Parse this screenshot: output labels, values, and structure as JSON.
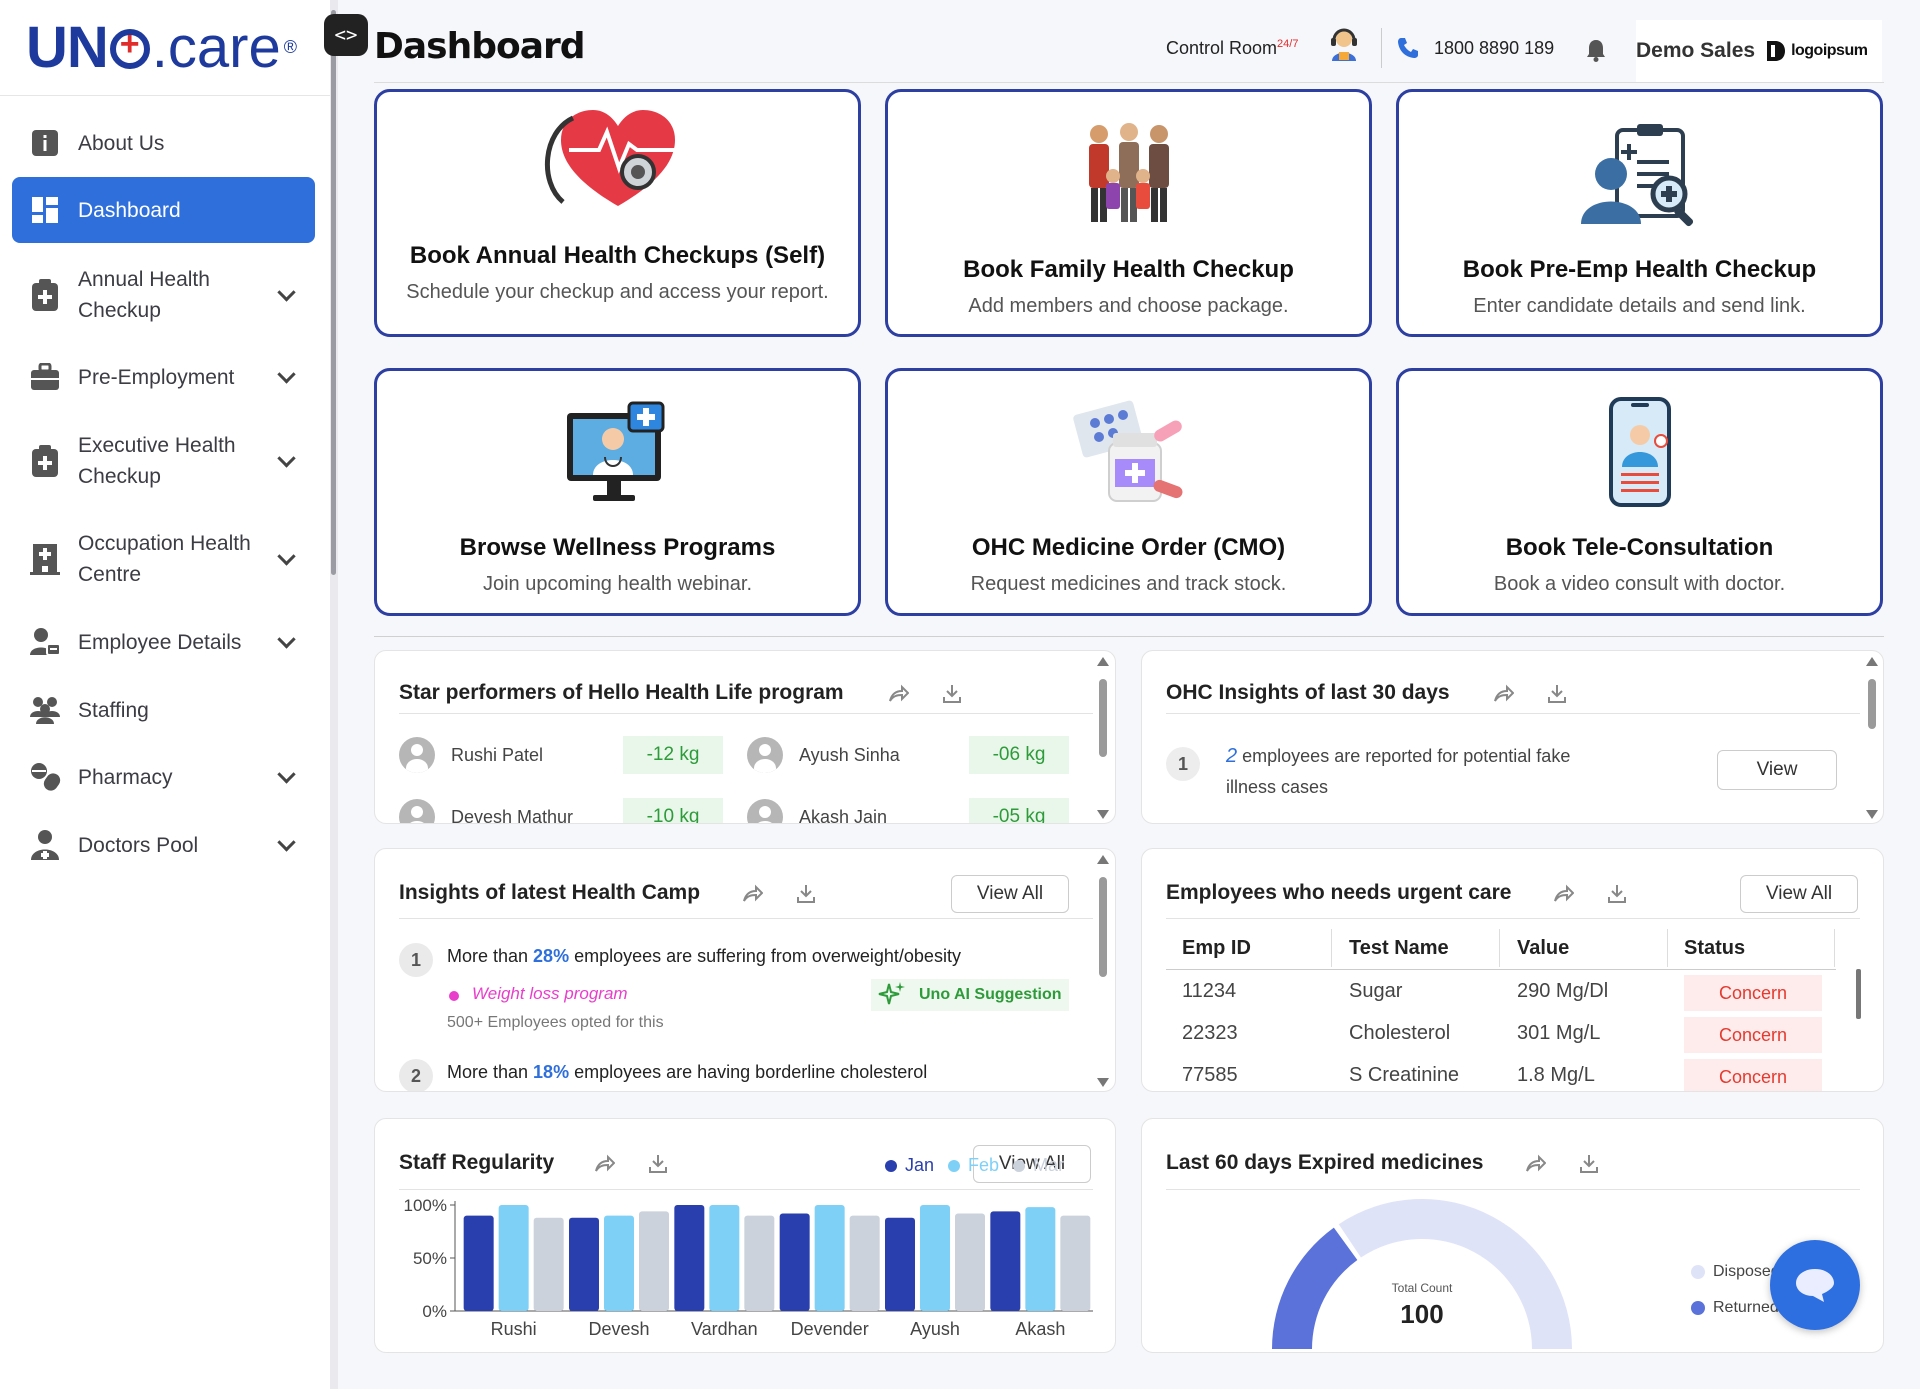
{
  "app": {
    "brand_uno": "UN",
    "brand_care": ".care",
    "brand_reg": "®",
    "page_title": "Dashboard"
  },
  "header": {
    "control_room": "Control Room",
    "control_room_sup": "24/7",
    "phone": "1800 8890 189",
    "user_name": "Demo Sales",
    "company_logo_text": "logoipsum"
  },
  "sidebar": {
    "items": [
      {
        "label": "About Us",
        "icon": "info-icon"
      },
      {
        "label": "Dashboard",
        "icon": "dashboard-icon"
      },
      {
        "label": "Annual Health Checkup",
        "icon": "medical-kit-icon"
      },
      {
        "label": "Pre-Employment",
        "icon": "briefcase-icon"
      },
      {
        "label": "Executive Health Checkup",
        "icon": "medical-kit-icon"
      },
      {
        "label": "Occupation Health Centre",
        "icon": "hospital-icon"
      },
      {
        "label": "Employee Details",
        "icon": "employee-icon"
      },
      {
        "label": "Staffing",
        "icon": "group-icon"
      },
      {
        "label": "Pharmacy",
        "icon": "pharmacy-icon"
      },
      {
        "label": "Doctors Pool",
        "icon": "doctor-icon"
      }
    ]
  },
  "cards": [
    {
      "title": "Book Annual Health Checkups (Self)",
      "subtitle": "Schedule your checkup and access your report."
    },
    {
      "title": "Book Family Health Checkup",
      "subtitle": "Add members and choose package."
    },
    {
      "title": "Book Pre-Emp Health Checkup",
      "subtitle": "Enter candidate details and send link."
    },
    {
      "title": "Browse Wellness Programs",
      "subtitle": "Join upcoming health webinar."
    },
    {
      "title": "OHC Medicine Order (CMO)",
      "subtitle": "Request medicines and track stock."
    },
    {
      "title": "Book Tele-Consultation",
      "subtitle": "Book a video consult with doctor."
    }
  ],
  "star_performers": {
    "title": "Star performers of Hello Health Life program",
    "rows": [
      {
        "name": "Rushi Patel",
        "value": "-12 kg"
      },
      {
        "name": "Ayush Sinha",
        "value": "-06 kg"
      },
      {
        "name": "Devesh Mathur",
        "value": "-10 kg"
      },
      {
        "name": "Akash Jain",
        "value": "-05 kg"
      }
    ]
  },
  "ohc_insights": {
    "title": "OHC Insights of last 30 days",
    "item_number": "1",
    "count": "2",
    "text": "employees are reported for potential fake illness cases",
    "view_label": "View"
  },
  "health_camp": {
    "title": "Insights of latest Health Camp",
    "view_all": "View All",
    "items": [
      {
        "num": "1",
        "pre": "More than ",
        "pct": "28%",
        "post": " employees are suffering from overweight/obesity"
      },
      {
        "num": "2",
        "pre": "More than ",
        "pct": "18%",
        "post": " employees are having borderline cholesterol"
      }
    ],
    "program_name": "Weight loss program",
    "program_sub": "500+ Employees opted for this",
    "ai_label": "Uno AI Suggestion"
  },
  "urgent_care": {
    "title": "Employees who needs urgent care",
    "view_all": "View All",
    "columns": [
      "Emp ID",
      "Test Name",
      "Value",
      "Status"
    ],
    "rows": [
      {
        "id": "11234",
        "test": "Sugar",
        "value": "290 Mg/Dl",
        "status": "Concern"
      },
      {
        "id": "22323",
        "test": "Cholesterol",
        "value": "301 Mg/L",
        "status": "Concern"
      },
      {
        "id": "77585",
        "test": "S Creatinine",
        "value": "1.8 Mg/L",
        "status": "Concern"
      }
    ]
  },
  "staff_regularity": {
    "title": "Staff Regularity",
    "view_all": "View All",
    "legend": [
      "Jan",
      "Feb",
      "Mar"
    ]
  },
  "chart_data": {
    "type": "bar",
    "categories": [
      "Rushi",
      "Devesh",
      "Vardhan",
      "Devender",
      "Ayush",
      "Akash"
    ],
    "series": [
      {
        "name": "Jan",
        "color": "#2a3fae",
        "values": [
          90,
          88,
          100,
          92,
          88,
          94
        ]
      },
      {
        "name": "Feb",
        "color": "#7fd0f7",
        "values": [
          100,
          90,
          100,
          100,
          100,
          98
        ]
      },
      {
        "name": "Mar",
        "color": "#cbd2dc",
        "values": [
          88,
          94,
          90,
          90,
          92,
          90
        ]
      }
    ],
    "ylim": [
      0,
      100
    ],
    "yticks": [
      "0%",
      "50%",
      "100%"
    ]
  },
  "expired_meds": {
    "title": "Last 60 days Expired medicines",
    "total_label": "Total Count",
    "total_value": "100",
    "legend": [
      {
        "label": "Disposed",
        "color": "#dfe3f8"
      },
      {
        "label": "Returned",
        "color": "#5a72d9"
      }
    ],
    "returned_fraction": 0.3
  }
}
